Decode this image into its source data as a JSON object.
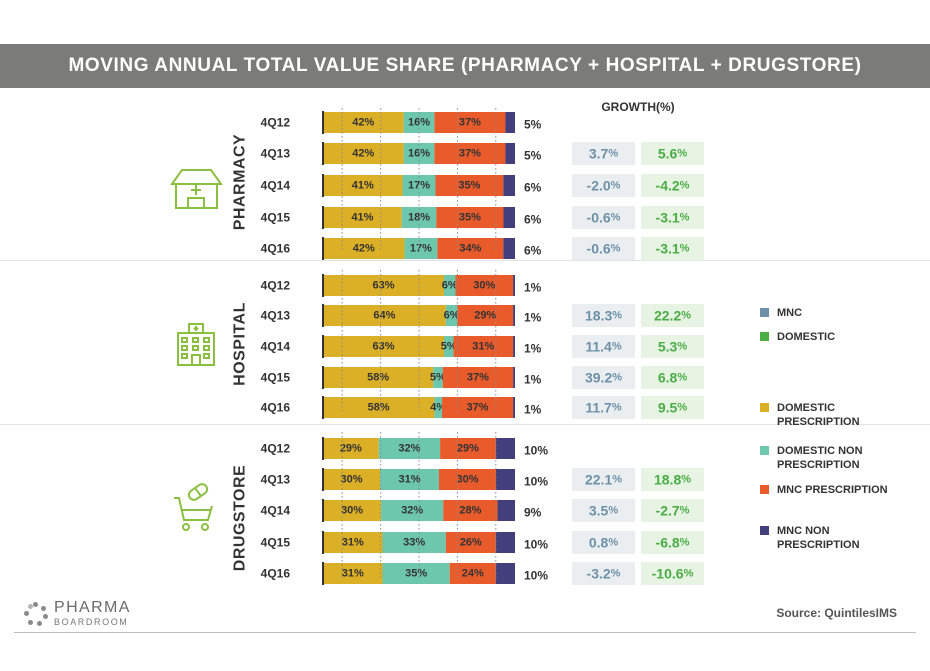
{
  "header": {
    "title": "MOVING ANNUAL TOTAL VALUE SHARE (PHARMACY + HOSPITAL + DRUGSTORE)"
  },
  "growth_header": "GROWTH(%)",
  "colors": {
    "domestic_prescription": "#dbaf26",
    "domestic_non_prescription": "#6cc7ad",
    "mnc_prescription": "#ea5b2c",
    "mnc_non_prescription": "#433f7c",
    "mnc_growth_text": "#6d91a8",
    "mnc_growth_bg": "#eaeef1",
    "domestic_growth_text": "#4aad45",
    "domestic_growth_bg": "#e7f3e3",
    "icon_green": "#8bbf3f"
  },
  "legend": {
    "growth_items": [
      {
        "label": "MNC",
        "color": "#6d91a8"
      },
      {
        "label": "DOMESTIC",
        "color": "#4aad45"
      }
    ],
    "segment_items": [
      {
        "label": "DOMESTIC PRESCRIPTION",
        "lines": [
          "DOMESTIC",
          "PRESCRIPTION"
        ],
        "color": "#dbaf26"
      },
      {
        "label": "DOMESTIC NON PRESCRIPTION",
        "lines": [
          "DOMESTIC NON",
          "PRESCRIPTION"
        ],
        "color": "#6cc7ad"
      },
      {
        "label": "MNC PRESCRIPTION",
        "lines": [
          "MNC PRESCRIPTION"
        ],
        "color": "#ea5b2c"
      },
      {
        "label": "MNC NON PRESCRIPTION",
        "lines": [
          "MNC NON",
          "PRESCRIPTION"
        ],
        "color": "#433f7c"
      }
    ]
  },
  "chart_data": {
    "type": "bar",
    "stacked": true,
    "orientation": "horizontal",
    "title": "MOVING ANNUAL TOTAL VALUE SHARE (PHARMACY + HOSPITAL + DRUGSTORE)",
    "series": [
      {
        "name": "DOMESTIC PRESCRIPTION"
      },
      {
        "name": "DOMESTIC NON PRESCRIPTION"
      },
      {
        "name": "MNC PRESCRIPTION"
      },
      {
        "name": "MNC NON PRESCRIPTION"
      }
    ],
    "growth_series": [
      {
        "name": "MNC"
      },
      {
        "name": "DOMESTIC"
      }
    ],
    "groups": [
      {
        "name": "PHARMACY",
        "icon": "pharmacy-building-icon",
        "rows": [
          {
            "period": "4Q12",
            "values": [
              42,
              16,
              37,
              5
            ],
            "growth": null
          },
          {
            "period": "4Q13",
            "values": [
              42,
              16,
              37,
              5
            ],
            "growth": {
              "mnc": "3.7",
              "domestic": "5.6"
            }
          },
          {
            "period": "4Q14",
            "values": [
              41,
              17,
              35,
              6
            ],
            "growth": {
              "mnc": "-2.0",
              "domestic": "-4.2"
            }
          },
          {
            "period": "4Q15",
            "values": [
              41,
              18,
              35,
              6
            ],
            "growth": {
              "mnc": "-0.6",
              "domestic": "-3.1"
            }
          },
          {
            "period": "4Q16",
            "values": [
              42,
              17,
              34,
              6
            ],
            "growth": {
              "mnc": "-0.6",
              "domestic": "-3.1"
            }
          }
        ]
      },
      {
        "name": "HOSPITAL",
        "icon": "hospital-building-icon",
        "rows": [
          {
            "period": "4Q12",
            "values": [
              63,
              6,
              30,
              1
            ],
            "growth": null
          },
          {
            "period": "4Q13",
            "values": [
              64,
              6,
              29,
              1
            ],
            "growth": {
              "mnc": "18.3",
              "domestic": "22.2"
            }
          },
          {
            "period": "4Q14",
            "values": [
              63,
              5,
              31,
              1
            ],
            "growth": {
              "mnc": "11.4",
              "domestic": "5.3"
            }
          },
          {
            "period": "4Q15",
            "values": [
              58,
              5,
              37,
              1
            ],
            "growth": {
              "mnc": "39.2",
              "domestic": "6.8"
            }
          },
          {
            "period": "4Q16",
            "values": [
              58,
              4,
              37,
              1
            ],
            "growth": {
              "mnc": "11.7",
              "domestic": "9.5"
            }
          }
        ]
      },
      {
        "name": "DRUGSTORE",
        "icon": "shopping-cart-pill-icon",
        "rows": [
          {
            "period": "4Q12",
            "values": [
              29,
              32,
              29,
              10
            ],
            "growth": null
          },
          {
            "period": "4Q13",
            "values": [
              30,
              31,
              30,
              10
            ],
            "growth": {
              "mnc": "22.1",
              "domestic": "18.8"
            }
          },
          {
            "period": "4Q14",
            "values": [
              30,
              32,
              28,
              9
            ],
            "growth": {
              "mnc": "3.5",
              "domestic": "-2.7"
            }
          },
          {
            "period": "4Q15",
            "values": [
              31,
              33,
              26,
              10
            ],
            "growth": {
              "mnc": "0.8",
              "domestic": "-6.8"
            }
          },
          {
            "period": "4Q16",
            "values": [
              31,
              35,
              24,
              10
            ],
            "growth": {
              "mnc": "-3.2",
              "domestic": "-10.6"
            }
          }
        ]
      }
    ]
  },
  "footer": {
    "logo_main": "PHARMA",
    "logo_sub": "BOARDROOM",
    "source": "Source: QuintilesIMS"
  }
}
